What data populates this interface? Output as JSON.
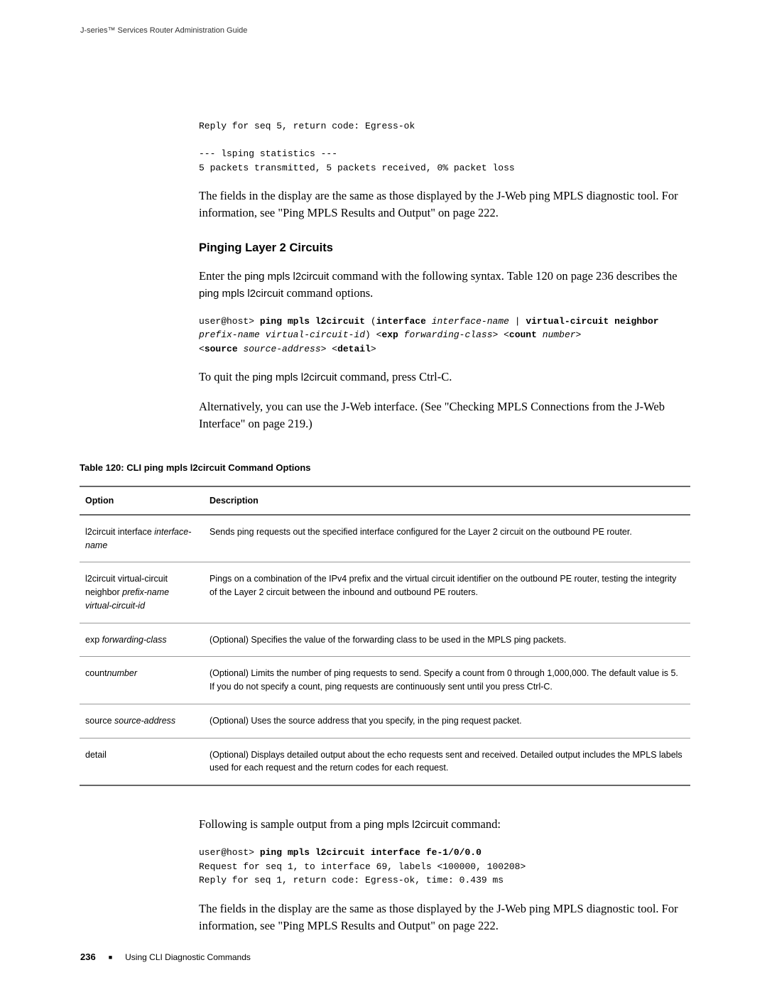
{
  "header": {
    "title": "J-series™ Services Router Administration Guide"
  },
  "code_block_1": "Reply for seq 5, return code: Egress-ok\n\n--- lsping statistics ---\n5 packets transmitted, 5 packets received, 0% packet loss",
  "para_1": "The fields in the display are the same as those displayed by the J-Web ping MPLS diagnostic tool. For information, see \"Ping MPLS Results and Output\" on page 222.",
  "section_heading": "Pinging Layer 2 Circuits",
  "para_2_a": "Enter the ",
  "para_2_cmd": "ping mpls l2circuit",
  "para_2_b": " command with the following syntax. Table 120 on page 236 describes the ",
  "para_2_cmd2": "ping mpls l2circuit",
  "para_2_c": " command options.",
  "syntax_prompt": "user@host> ",
  "syntax_parts": {
    "p1": "ping mpls l2circuit",
    "p2": " (",
    "p3": "interface",
    "p4": " ",
    "p5": "interface-name",
    "p6": " | ",
    "p7": "virtual-circuit neighbor",
    "p8": " ",
    "p9": "prefix-name virtual-circuit-id",
    "p10": ") <",
    "p11": "exp",
    "p12": " ",
    "p13": "forwarding-class",
    "p14": "> <",
    "p15": "count",
    "p16": " ",
    "p17": "number",
    "p18": ">",
    "p19": "<",
    "p20": "source",
    "p21": " ",
    "p22": "source-address",
    "p23": "> <",
    "p24": "detail",
    "p25": ">"
  },
  "para_3_a": "To quit the ",
  "para_3_cmd": "ping mpls l2circuit",
  "para_3_b": " command, press Ctrl-C.",
  "para_4": "Alternatively, you can use the J-Web interface. (See \"Checking MPLS Connections from the J-Web Interface\" on page 219.)",
  "table_caption": "Table 120: CLI ping mpls l2circuit Command Options",
  "table": {
    "col_option": "Option",
    "col_description": "Description",
    "rows": [
      {
        "opt_a": "l2circuit interface ",
        "opt_i": "interface-name",
        "desc": "Sends ping requests out the specified interface configured for the Layer 2 circuit on the outbound PE router."
      },
      {
        "opt_a": "l2circuit virtual-circuit neighbor ",
        "opt_i": "prefix-name virtual-circuit-id",
        "desc": "Pings on a combination of the IPv4 prefix and the virtual circuit identifier on the outbound PE router, testing the integrity of the Layer 2 circuit between the inbound and outbound PE routers."
      },
      {
        "opt_a": "exp ",
        "opt_i": "forwarding-class",
        "desc": "(Optional) Specifies the value of the forwarding class to be used in the MPLS ping packets."
      },
      {
        "opt_a": "count",
        "opt_i": "number",
        "desc": "(Optional) Limits the number of ping requests to send. Specify a count from 0 through 1,000,000. The default value is 5. If you do not specify a count, ping requests are continuously sent until you press Ctrl-C."
      },
      {
        "opt_a": "source ",
        "opt_i": "source-address",
        "desc": "(Optional) Uses the source address that you specify, in the ping request packet."
      },
      {
        "opt_a": "detail",
        "opt_i": "",
        "desc": "(Optional) Displays detailed output about the echo requests sent and received. Detailed output includes the MPLS labels used for each request and the return codes for each request."
      }
    ]
  },
  "para_5_a": "Following is sample output from a ",
  "para_5_cmd": "ping mpls l2circuit",
  "para_5_b": " command:",
  "code_block_2_prompt": "user@host> ",
  "code_block_2_cmd": "ping mpls l2circuit interface fe-1/0/0.0",
  "code_block_2_rest": "Request for seq 1, to interface 69, labels <100000, 100208>\nReply for seq 1, return code: Egress-ok, time: 0.439 ms",
  "para_6": "The fields in the display are the same as those displayed by the J-Web ping MPLS diagnostic tool. For information, see \"Ping MPLS Results and Output\" on page 222.",
  "footer": {
    "page_number": "236",
    "section": "Using CLI Diagnostic Commands"
  }
}
